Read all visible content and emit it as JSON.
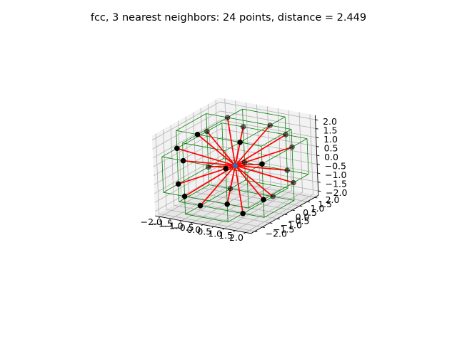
{
  "chart_data": {
    "type": "scatter3d",
    "title": "fcc, 3 nearest neighbors: 24 points, distance = 2.449",
    "xlabel": "",
    "ylabel": "",
    "zlabel": "",
    "grid": true,
    "xlim": [
      -2.25,
      2.25
    ],
    "ylim": [
      -2.25,
      2.25
    ],
    "zlim": [
      -2.25,
      2.25
    ],
    "x_ticks": [
      "−2.0",
      "−1.5",
      "−1.0",
      "−0.5",
      "0.0",
      "0.5",
      "1.0",
      "1.5",
      "2.0"
    ],
    "y_ticks": [
      "−2.0",
      "−1.5",
      "−1.0",
      "−0.5",
      "0.0",
      "0.5",
      "1.0",
      "1.5",
      "2.0"
    ],
    "z_ticks": [
      "−2.0",
      "−1.5",
      "−1.0",
      "−0.5",
      "0.0",
      "0.5",
      "1.0",
      "1.5",
      "2.0"
    ],
    "tick_values": [
      -2,
      -1.5,
      -1,
      -0.5,
      0,
      0.5,
      1,
      1.5,
      2
    ],
    "center": {
      "x": 0,
      "y": 0,
      "z": 0,
      "color": "#1f77b4"
    },
    "cube_edges": [
      -1,
      1
    ],
    "cube_color": "#008000",
    "line_color": "#ff0000",
    "point_color": "#000000",
    "neighbors": [
      {
        "x": 2,
        "y": 1,
        "z": 1
      },
      {
        "x": 2,
        "y": -1,
        "z": 1
      },
      {
        "x": 2,
        "y": 1,
        "z": -1
      },
      {
        "x": 2,
        "y": -1,
        "z": -1
      },
      {
        "x": -2,
        "y": 1,
        "z": 1
      },
      {
        "x": -2,
        "y": -1,
        "z": 1
      },
      {
        "x": -2,
        "y": 1,
        "z": -1
      },
      {
        "x": -2,
        "y": -1,
        "z": -1
      },
      {
        "x": 1,
        "y": 2,
        "z": 1
      },
      {
        "x": -1,
        "y": 2,
        "z": 1
      },
      {
        "x": 1,
        "y": 2,
        "z": -1
      },
      {
        "x": -1,
        "y": 2,
        "z": -1
      },
      {
        "x": 1,
        "y": -2,
        "z": 1
      },
      {
        "x": -1,
        "y": -2,
        "z": 1
      },
      {
        "x": 1,
        "y": -2,
        "z": -1
      },
      {
        "x": -1,
        "y": -2,
        "z": -1
      },
      {
        "x": 1,
        "y": 1,
        "z": 2
      },
      {
        "x": -1,
        "y": 1,
        "z": 2
      },
      {
        "x": 1,
        "y": -1,
        "z": 2
      },
      {
        "x": -1,
        "y": -1,
        "z": 2
      },
      {
        "x": 1,
        "y": 1,
        "z": -2
      },
      {
        "x": -1,
        "y": 1,
        "z": -2
      },
      {
        "x": 1,
        "y": -1,
        "z": -2
      },
      {
        "x": -1,
        "y": -1,
        "z": -2
      }
    ]
  }
}
